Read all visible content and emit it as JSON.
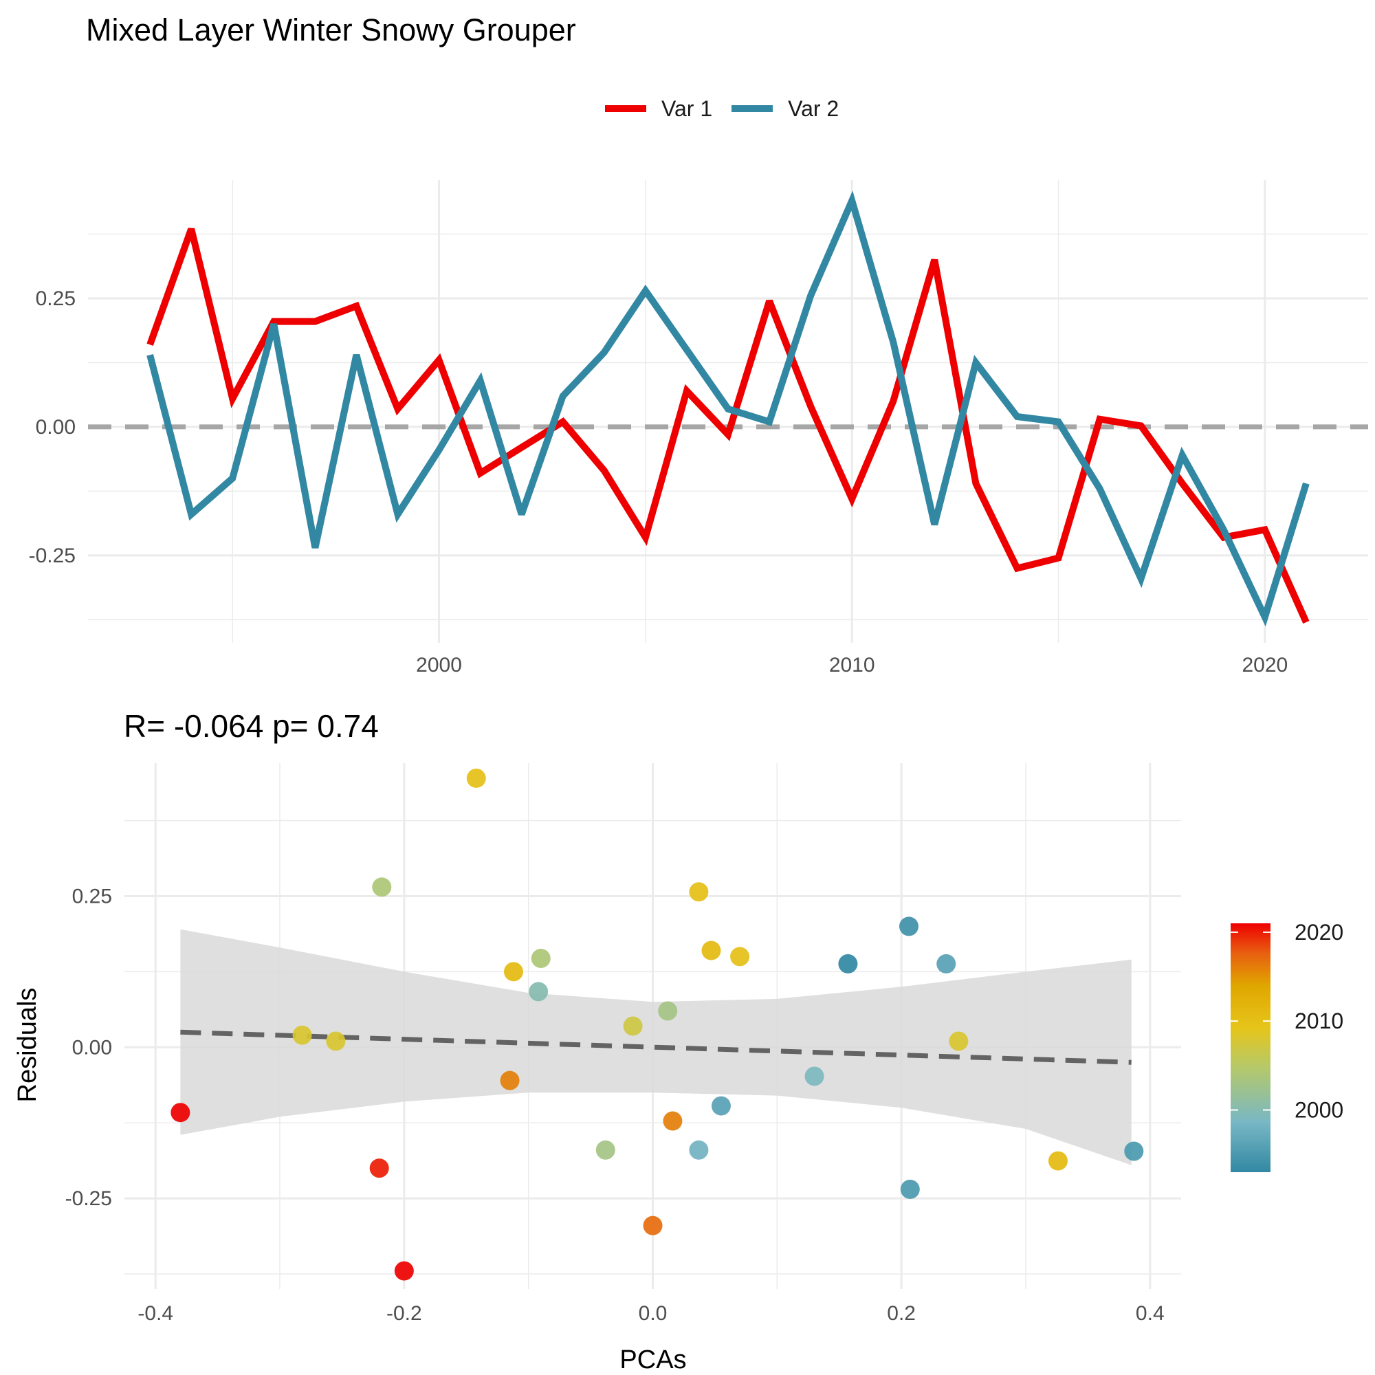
{
  "title": "Mixed Layer Winter Snowy Grouper",
  "colors": {
    "var1": "#ee0000",
    "var2": "#3288a3",
    "grid": "#ebebeb",
    "zero_line": "#a6a6a6",
    "ribbon": "#d9d9d9",
    "fit_line": "#636363"
  },
  "chart_data": [
    {
      "type": "line",
      "title": "",
      "xlabel": "",
      "ylabel": "",
      "x_ticks": [
        "2000",
        "2010",
        "2020"
      ],
      "y_ticks": [
        "0.25",
        "0.00",
        "-0.25"
      ],
      "xlim": [
        1991.5,
        2022.5
      ],
      "ylim": [
        -0.42,
        0.48
      ],
      "grid": true,
      "legend_position": "top",
      "reference_line": {
        "y": 0,
        "style": "dashed"
      },
      "x": [
        1993,
        1994,
        1995,
        1996,
        1997,
        1998,
        1999,
        2000,
        2001,
        2002,
        2003,
        2004,
        2005,
        2006,
        2007,
        2008,
        2009,
        2010,
        2011,
        2012,
        2013,
        2014,
        2015,
        2016,
        2017,
        2018,
        2019,
        2020,
        2021
      ],
      "series": [
        {
          "name": "Var 1",
          "color": "#ee0000",
          "values": [
            0.16,
            0.385,
            0.055,
            0.205,
            0.205,
            0.235,
            0.035,
            0.13,
            -0.09,
            -0.04,
            0.01,
            -0.085,
            -0.215,
            0.07,
            -0.015,
            0.245,
            0.04,
            -0.14,
            0.05,
            0.325,
            -0.11,
            -0.275,
            -0.255,
            0.015,
            0.002,
            -0.11,
            -0.215,
            -0.2,
            -0.38
          ]
        },
        {
          "name": "Var 2",
          "color": "#3288a3",
          "values": [
            0.14,
            -0.17,
            -0.1,
            0.2,
            -0.235,
            0.14,
            -0.17,
            -0.045,
            0.09,
            -0.17,
            0.06,
            0.145,
            0.265,
            0.15,
            0.035,
            0.01,
            0.255,
            0.44,
            0.165,
            -0.19,
            0.125,
            0.02,
            0.01,
            -0.12,
            -0.295,
            -0.055,
            -0.2,
            -0.37,
            -0.11
          ]
        }
      ]
    },
    {
      "type": "scatter",
      "title": "R= -0.064  p= 0.74",
      "xlabel": "PCAs",
      "ylabel": "Residuals",
      "x_ticks": [
        "-0.4",
        "-0.2",
        "0.0",
        "0.2",
        "0.4"
      ],
      "y_ticks": [
        "0.25",
        "0.00",
        "-0.25"
      ],
      "xlim": [
        -0.425,
        0.425
      ],
      "ylim": [
        -0.4,
        0.47
      ],
      "grid": true,
      "fit": {
        "x": [
          -0.38,
          0.385
        ],
        "y": [
          0.025,
          -0.025
        ],
        "style": "dashed"
      },
      "confidence_band": {
        "x": [
          -0.38,
          -0.3,
          -0.2,
          -0.1,
          0.0,
          0.1,
          0.2,
          0.3,
          0.385
        ],
        "upper": [
          0.195,
          0.165,
          0.125,
          0.09,
          0.075,
          0.08,
          0.1,
          0.125,
          0.145
        ],
        "lower": [
          -0.145,
          -0.115,
          -0.09,
          -0.075,
          -0.075,
          -0.08,
          -0.1,
          -0.135,
          -0.195
        ]
      },
      "colorbar": {
        "title": "",
        "ticks": [
          "2020",
          "2010",
          "2000"
        ],
        "range": [
          1993,
          2021
        ],
        "position": "right"
      },
      "points": [
        {
          "x": -0.38,
          "y": -0.108,
          "year": 2021
        },
        {
          "x": -0.282,
          "y": 0.02,
          "year": 2008
        },
        {
          "x": -0.255,
          "y": 0.01,
          "year": 2008
        },
        {
          "x": -0.218,
          "y": 0.265,
          "year": 2004
        },
        {
          "x": -0.22,
          "y": -0.2,
          "year": 2020
        },
        {
          "x": -0.2,
          "y": -0.37,
          "year": 2021
        },
        {
          "x": -0.142,
          "y": 0.445,
          "year": 2010
        },
        {
          "x": -0.112,
          "y": 0.125,
          "year": 2011
        },
        {
          "x": -0.115,
          "y": -0.055,
          "year": 2016
        },
        {
          "x": -0.09,
          "y": 0.147,
          "year": 2004
        },
        {
          "x": -0.092,
          "y": 0.092,
          "year": 2000
        },
        {
          "x": -0.038,
          "y": -0.17,
          "year": 2003
        },
        {
          "x": -0.016,
          "y": 0.035,
          "year": 2007
        },
        {
          "x": 0.0,
          "y": -0.295,
          "year": 2017
        },
        {
          "x": 0.012,
          "y": 0.06,
          "year": 2003
        },
        {
          "x": 0.016,
          "y": -0.122,
          "year": 2016
        },
        {
          "x": 0.037,
          "y": 0.257,
          "year": 2010
        },
        {
          "x": 0.037,
          "y": -0.17,
          "year": 1998
        },
        {
          "x": 0.047,
          "y": 0.16,
          "year": 2011
        },
        {
          "x": 0.055,
          "y": -0.097,
          "year": 1996
        },
        {
          "x": 0.07,
          "y": 0.15,
          "year": 2010
        },
        {
          "x": 0.13,
          "y": -0.048,
          "year": 1999
        },
        {
          "x": 0.157,
          "y": 0.138,
          "year": 1993
        },
        {
          "x": 0.206,
          "y": 0.2,
          "year": 1994
        },
        {
          "x": 0.207,
          "y": -0.235,
          "year": 1995
        },
        {
          "x": 0.236,
          "y": 0.138,
          "year": 1996
        },
        {
          "x": 0.246,
          "y": 0.01,
          "year": 2008
        },
        {
          "x": 0.326,
          "y": -0.188,
          "year": 2011
        },
        {
          "x": 0.387,
          "y": -0.172,
          "year": 1995
        }
      ]
    }
  ]
}
